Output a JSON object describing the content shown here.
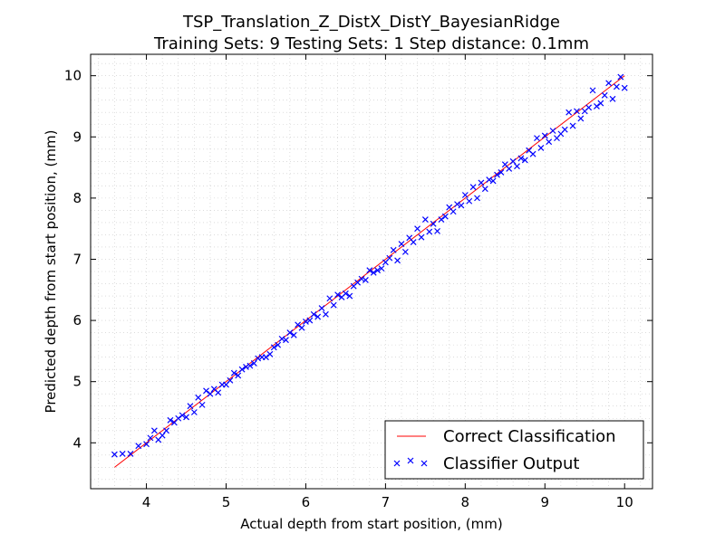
{
  "chart_data": {
    "type": "scatter",
    "title": "TSP_Translation_Z_DistX_DistY_BayesianRidge",
    "subtitle": "Training Sets: 9    Testing Sets: 1    Step distance: 0.1mm",
    "xlabel": "Actual depth from start position, (mm)",
    "ylabel": "Predicted depth from start position, (mm)",
    "xlim": [
      3.3,
      10.35
    ],
    "ylim": [
      3.25,
      10.35
    ],
    "xticks": [
      4,
      5,
      6,
      7,
      8,
      9,
      10
    ],
    "yticks": [
      4,
      5,
      6,
      7,
      8,
      9,
      10
    ],
    "grid": true,
    "legend_position": "bottom-right",
    "series": [
      {
        "name": "Correct Classification",
        "kind": "line",
        "color": "#ff0000",
        "x": [
          3.6,
          10.0
        ],
        "y": [
          3.6,
          10.0
        ]
      },
      {
        "name": "Classifier Output",
        "kind": "scatter",
        "marker": "x",
        "color": "#0000ff",
        "x": [
          3.6,
          3.7,
          3.8,
          3.9,
          4.0,
          4.05,
          4.1,
          4.15,
          4.2,
          4.25,
          4.3,
          4.35,
          4.4,
          4.45,
          4.5,
          4.55,
          4.6,
          4.65,
          4.7,
          4.75,
          4.8,
          4.85,
          4.9,
          4.95,
          5.0,
          5.05,
          5.1,
          5.15,
          5.2,
          5.25,
          5.3,
          5.35,
          5.4,
          5.45,
          5.5,
          5.55,
          5.6,
          5.65,
          5.7,
          5.75,
          5.8,
          5.85,
          5.9,
          5.95,
          6.0,
          6.05,
          6.1,
          6.15,
          6.2,
          6.25,
          6.3,
          6.35,
          6.4,
          6.45,
          6.5,
          6.55,
          6.6,
          6.65,
          6.7,
          6.75,
          6.8,
          6.85,
          6.9,
          6.95,
          7.0,
          7.05,
          7.1,
          7.15,
          7.2,
          7.25,
          7.3,
          7.35,
          7.4,
          7.45,
          7.5,
          7.55,
          7.6,
          7.65,
          7.7,
          7.75,
          7.8,
          7.85,
          7.9,
          7.95,
          8.0,
          8.05,
          8.1,
          8.15,
          8.2,
          8.25,
          8.3,
          8.35,
          8.4,
          8.45,
          8.5,
          8.55,
          8.6,
          8.65,
          8.7,
          8.75,
          8.8,
          8.85,
          8.9,
          8.95,
          9.0,
          9.05,
          9.1,
          9.15,
          9.2,
          9.25,
          9.3,
          9.35,
          9.4,
          9.45,
          9.5,
          9.55,
          9.6,
          9.65,
          9.7,
          9.75,
          9.8,
          9.85,
          9.9,
          9.95,
          10.0
        ],
        "y": [
          3.81,
          3.82,
          3.82,
          3.95,
          3.98,
          4.08,
          4.2,
          4.05,
          4.12,
          4.2,
          4.37,
          4.33,
          4.4,
          4.45,
          4.42,
          4.6,
          4.5,
          4.74,
          4.62,
          4.85,
          4.8,
          4.88,
          4.82,
          4.95,
          4.95,
          5.02,
          5.14,
          5.1,
          5.2,
          5.24,
          5.26,
          5.3,
          5.38,
          5.4,
          5.4,
          5.45,
          5.56,
          5.6,
          5.7,
          5.68,
          5.8,
          5.76,
          5.93,
          5.88,
          5.98,
          6.0,
          6.1,
          6.06,
          6.2,
          6.1,
          6.36,
          6.25,
          6.42,
          6.38,
          6.44,
          6.4,
          6.56,
          6.62,
          6.68,
          6.66,
          6.82,
          6.78,
          6.82,
          6.85,
          6.95,
          7.02,
          7.15,
          6.98,
          7.25,
          7.12,
          7.35,
          7.28,
          7.5,
          7.36,
          7.65,
          7.45,
          7.58,
          7.46,
          7.65,
          7.7,
          7.85,
          7.78,
          7.9,
          7.88,
          8.05,
          7.95,
          8.18,
          8.0,
          8.25,
          8.15,
          8.3,
          8.28,
          8.38,
          8.42,
          8.55,
          8.48,
          8.6,
          8.52,
          8.65,
          8.62,
          8.78,
          8.72,
          8.98,
          8.82,
          9.02,
          8.92,
          9.1,
          8.98,
          9.05,
          9.12,
          9.4,
          9.18,
          9.42,
          9.3,
          9.42,
          9.48,
          9.76,
          9.5,
          9.55,
          9.68,
          9.88,
          9.62,
          9.82,
          9.98,
          9.8
        ]
      }
    ]
  }
}
